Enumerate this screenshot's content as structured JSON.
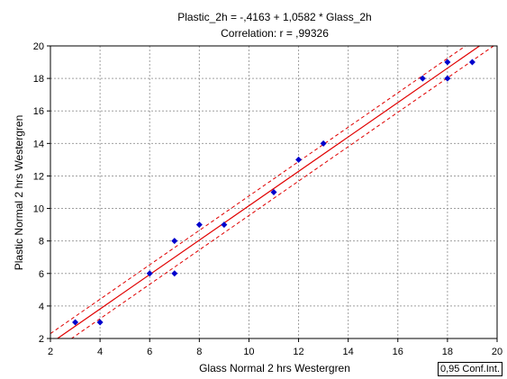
{
  "chart_data": {
    "type": "scatter",
    "title": "Plastic_2h = -,4163 + 1,0582 * Glass_2h",
    "subtitle": "Correlation: r = ,99326",
    "xlabel": "Glass Normal 2 hrs Westergren",
    "ylabel": "Plastic Normal 2 hrs Westergren",
    "xlim": [
      2,
      20
    ],
    "ylim": [
      2,
      20
    ],
    "x_ticks": [
      "2",
      "4",
      "6",
      "8",
      "10",
      "12",
      "14",
      "16",
      "18",
      "20"
    ],
    "y_ticks": [
      "2",
      "4",
      "6",
      "8",
      "10",
      "12",
      "14",
      "16",
      "18",
      "20"
    ],
    "grid": true,
    "points": [
      {
        "x": 3,
        "y": 3
      },
      {
        "x": 4,
        "y": 3
      },
      {
        "x": 6,
        "y": 6
      },
      {
        "x": 7,
        "y": 6
      },
      {
        "x": 7,
        "y": 8
      },
      {
        "x": 8,
        "y": 9
      },
      {
        "x": 9,
        "y": 9
      },
      {
        "x": 11,
        "y": 11
      },
      {
        "x": 12,
        "y": 13
      },
      {
        "x": 13,
        "y": 14
      },
      {
        "x": 17,
        "y": 18
      },
      {
        "x": 18,
        "y": 18
      },
      {
        "x": 18,
        "y": 19
      },
      {
        "x": 19,
        "y": 19
      }
    ],
    "regression": {
      "intercept": -0.4163,
      "slope": 1.0582
    },
    "confidence_band": {
      "level": 0.95,
      "half_width": 0.6
    },
    "legend": "0,95 Conf.Int.",
    "colors": {
      "points": "#0000cc",
      "regression_line": "#e00000",
      "confidence_band": "#e00000",
      "grid": "#a0a0a0"
    }
  }
}
